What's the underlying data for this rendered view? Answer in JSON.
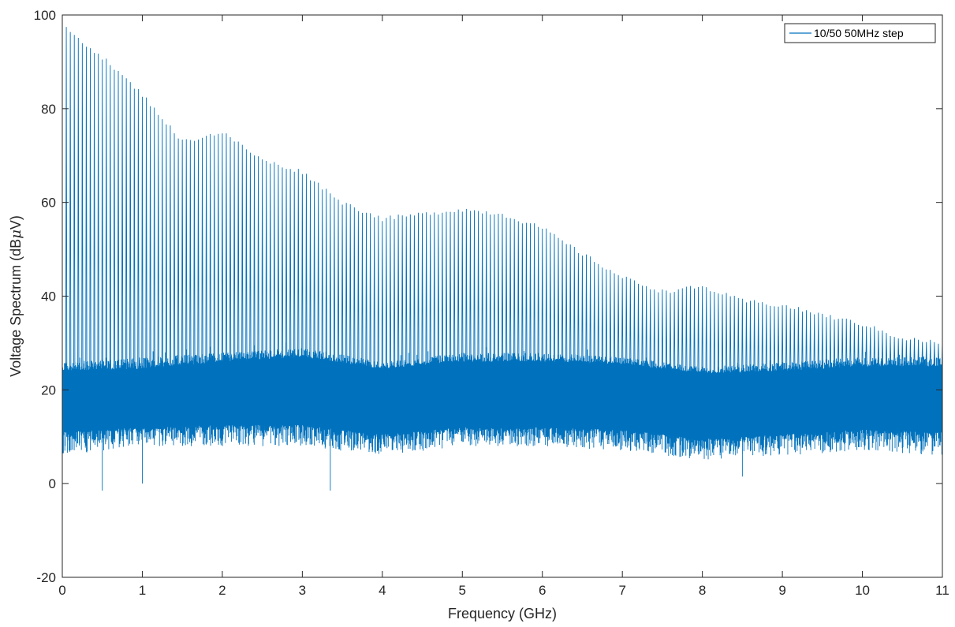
{
  "chart_data": {
    "type": "line",
    "title": "",
    "xlabel": "Frequency (GHz)",
    "ylabel_prefix": "Voltage Spectrum (dB",
    "ylabel_mu": "μ",
    "ylabel_suffix": "V)",
    "xlim": [
      0,
      11
    ],
    "ylim": [
      -20,
      100
    ],
    "xticks": [
      0,
      1,
      2,
      3,
      4,
      5,
      6,
      7,
      8,
      9,
      10,
      11
    ],
    "yticks": [
      -20,
      0,
      20,
      40,
      60,
      80,
      100
    ],
    "grid": false,
    "legend_position": "top-right",
    "colors": {
      "series": "#0072bd",
      "axes": "#262626"
    },
    "series": [
      {
        "name": "10/50 50MHz step",
        "step_GHz": 0.05,
        "peak_envelope": {
          "x": [
            0.05,
            0.5,
            1.0,
            1.5,
            2.0,
            2.5,
            3.0,
            3.5,
            4.0,
            4.5,
            5.0,
            5.5,
            6.0,
            6.5,
            7.0,
            7.5,
            8.0,
            8.5,
            9.0,
            9.5,
            10.0,
            10.5,
            11.0
          ],
          "y": [
            97,
            91,
            83,
            73,
            75,
            69,
            66.5,
            60,
            56.5,
            57.5,
            58.5,
            57.5,
            54.5,
            49,
            44,
            41,
            42,
            39,
            38,
            36,
            34,
            31,
            30
          ]
        },
        "noise_floor": {
          "x": [
            0,
            1,
            2,
            3,
            4,
            5,
            6,
            7,
            8,
            9,
            10,
            11
          ],
          "upper": [
            26,
            27,
            28,
            29,
            26,
            28,
            28,
            27,
            25,
            26,
            27,
            27
          ],
          "lower": [
            6,
            8,
            8,
            8,
            6,
            8,
            8,
            7,
            5,
            6,
            7,
            6
          ],
          "dense_upper": [
            24,
            24.5,
            26,
            27,
            24.5,
            26,
            26,
            25.5,
            23.5,
            24,
            25,
            25
          ],
          "dense_lower": [
            11,
            12,
            12.5,
            12.5,
            10.5,
            12,
            12,
            11.5,
            9.5,
            10.5,
            11.5,
            11
          ],
          "min_spikes": [
            {
              "x": 0.5,
              "y": -1.5
            },
            {
              "x": 3.35,
              "y": -1.5
            },
            {
              "x": 1.0,
              "y": 0
            },
            {
              "x": 8.5,
              "y": 1.5
            }
          ]
        }
      }
    ]
  }
}
